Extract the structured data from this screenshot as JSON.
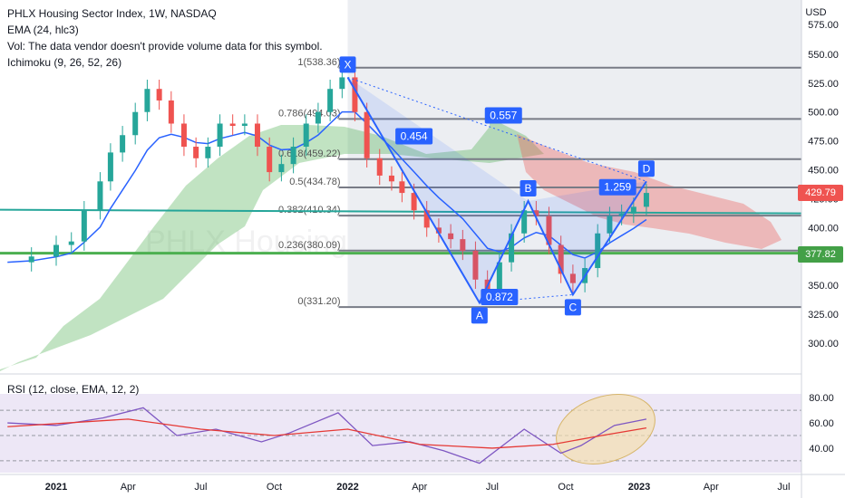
{
  "legend": {
    "title": "PHLX Housing Sector Index, 1W, NASDAQ",
    "ema": "EMA (24, hlc3)",
    "vol": "Vol: The data vendor doesn't provide volume data for this symbol.",
    "ichimoku": "Ichimoku (9, 26, 52, 26)",
    "rsi": "RSI (12, close, EMA, 12, 2)"
  },
  "currency": "USD",
  "watermark": "PHLX Housing",
  "colors": {
    "up": "#26a69a",
    "down": "#ef5350",
    "ema": "#2962ff",
    "pattern": "#2962ff",
    "fib": "#787b86",
    "support": "#4caf50",
    "cloud_bull": "#4caf50",
    "cloud_bear": "#ef5350",
    "rsi_line": "#7e57c2",
    "rsi_ma": "#e53935",
    "rsi_bg": "#ede7f6",
    "highlight": "#f3deb0",
    "price_tag": "#ef5350",
    "support_tag": "#43a047"
  },
  "chart_data": [
    {
      "type": "candlestick",
      "title": "PHLX Housing Sector Index, 1W, NASDAQ",
      "x_ticks": [
        "2021",
        "Apr",
        "Jul",
        "Oct",
        "2022",
        "Apr",
        "Jul",
        "Oct",
        "2023",
        "Apr",
        "Jul"
      ],
      "y_ticks": [
        300,
        325,
        350,
        375,
        400,
        425,
        450,
        475,
        500,
        525,
        550
      ],
      "y_top_label": "575.00",
      "ylim": [
        290,
        585
      ],
      "last_price": "429.79",
      "support_price": "377.82",
      "fib_levels": [
        {
          "ratio": "1",
          "price": 538.36
        },
        {
          "ratio": "0.786",
          "price": 494.03
        },
        {
          "ratio": "0.618",
          "price": 459.22
        },
        {
          "ratio": "0.5",
          "price": 434.78
        },
        {
          "ratio": "0.382",
          "price": 410.34
        },
        {
          "ratio": "0.236",
          "price": 380.09
        },
        {
          "ratio": "0",
          "price": 331.2
        }
      ],
      "harmonic_points": [
        {
          "label": "X",
          "date": "2022-01-01",
          "price": 530
        },
        {
          "label": "A",
          "date": "2022-06-15",
          "price": 335
        },
        {
          "label": "B",
          "date": "2022-08-15",
          "price": 423
        },
        {
          "label": "C",
          "date": "2022-10-10",
          "price": 342
        },
        {
          "label": "D",
          "date": "2023-01-10",
          "price": 440
        }
      ],
      "harmonic_ratios": [
        {
          "label": "0.454",
          "date": "2022-03-25",
          "price": 479
        },
        {
          "label": "0.557",
          "date": "2022-07-15",
          "price": 497
        },
        {
          "label": "1.259",
          "date": "2022-12-05",
          "price": 435
        },
        {
          "label": "0.872",
          "date": "2022-07-10",
          "price": 340
        }
      ],
      "weekly_closes": [
        {
          "date": "2020-11-01",
          "close": 370
        },
        {
          "date": "2020-12-01",
          "close": 375
        },
        {
          "date": "2021-01-01",
          "close": 385
        },
        {
          "date": "2021-01-20",
          "close": 388
        },
        {
          "date": "2021-02-05",
          "close": 415
        },
        {
          "date": "2021-02-25",
          "close": 440
        },
        {
          "date": "2021-03-10",
          "close": 465
        },
        {
          "date": "2021-03-25",
          "close": 480
        },
        {
          "date": "2021-04-10",
          "close": 500
        },
        {
          "date": "2021-04-25",
          "close": 520
        },
        {
          "date": "2021-05-10",
          "close": 510
        },
        {
          "date": "2021-05-25",
          "close": 490
        },
        {
          "date": "2021-06-10",
          "close": 470
        },
        {
          "date": "2021-06-25",
          "close": 460
        },
        {
          "date": "2021-07-10",
          "close": 470
        },
        {
          "date": "2021-07-25",
          "close": 490
        },
        {
          "date": "2021-08-10",
          "close": 488
        },
        {
          "date": "2021-08-25",
          "close": 490
        },
        {
          "date": "2021-09-10",
          "close": 470
        },
        {
          "date": "2021-09-25",
          "close": 448
        },
        {
          "date": "2021-10-10",
          "close": 455
        },
        {
          "date": "2021-10-25",
          "close": 470
        },
        {
          "date": "2021-11-10",
          "close": 490
        },
        {
          "date": "2021-11-25",
          "close": 500
        },
        {
          "date": "2021-12-10",
          "close": 520
        },
        {
          "date": "2021-12-25",
          "close": 530
        },
        {
          "date": "2022-01-10",
          "close": 500
        },
        {
          "date": "2022-01-25",
          "close": 460
        },
        {
          "date": "2022-02-10",
          "close": 445
        },
        {
          "date": "2022-02-25",
          "close": 440
        },
        {
          "date": "2022-03-10",
          "close": 430
        },
        {
          "date": "2022-03-25",
          "close": 415
        },
        {
          "date": "2022-04-10",
          "close": 400
        },
        {
          "date": "2022-04-25",
          "close": 395
        },
        {
          "date": "2022-05-10",
          "close": 390
        },
        {
          "date": "2022-05-25",
          "close": 380
        },
        {
          "date": "2022-06-10",
          "close": 355
        },
        {
          "date": "2022-06-25",
          "close": 345
        },
        {
          "date": "2022-07-10",
          "close": 370
        },
        {
          "date": "2022-07-25",
          "close": 395
        },
        {
          "date": "2022-08-10",
          "close": 415
        },
        {
          "date": "2022-08-25",
          "close": 410
        },
        {
          "date": "2022-09-10",
          "close": 385
        },
        {
          "date": "2022-09-25",
          "close": 360
        },
        {
          "date": "2022-10-10",
          "close": 352
        },
        {
          "date": "2022-10-25",
          "close": 365
        },
        {
          "date": "2022-11-10",
          "close": 395
        },
        {
          "date": "2022-11-25",
          "close": 410
        },
        {
          "date": "2022-12-10",
          "close": 412
        },
        {
          "date": "2022-12-25",
          "close": 418
        },
        {
          "date": "2023-01-10",
          "close": 430
        }
      ]
    },
    {
      "type": "line",
      "title": "RSI (12, close, EMA, 12, 2)",
      "y_ticks": [
        40,
        60,
        80
      ],
      "ylim": [
        22,
        83
      ],
      "band": [
        30,
        70
      ],
      "series": [
        {
          "values_by_date": [
            {
              "date": "2020-11-01",
              "value": 60
            },
            {
              "date": "2021-01-01",
              "value": 58
            },
            {
              "date": "2021-03-01",
              "value": 64
            },
            {
              "date": "2021-04-20",
              "value": 72
            },
            {
              "date": "2021-06-01",
              "value": 50
            },
            {
              "date": "2021-07-20",
              "value": 55
            },
            {
              "date": "2021-09-15",
              "value": 45
            },
            {
              "date": "2021-10-20",
              "value": 52
            },
            {
              "date": "2021-12-20",
              "value": 68
            },
            {
              "date": "2022-02-01",
              "value": 42
            },
            {
              "date": "2022-03-20",
              "value": 45
            },
            {
              "date": "2022-05-01",
              "value": 38
            },
            {
              "date": "2022-06-15",
              "value": 28
            },
            {
              "date": "2022-08-10",
              "value": 55
            },
            {
              "date": "2022-09-25",
              "value": 36
            },
            {
              "date": "2022-10-20",
              "value": 42
            },
            {
              "date": "2022-12-01",
              "value": 58
            },
            {
              "date": "2023-01-10",
              "value": 63
            }
          ]
        },
        {
          "values_by_date": [
            {
              "date": "2020-11-01",
              "value": 57
            },
            {
              "date": "2021-04-01",
              "value": 63
            },
            {
              "date": "2021-07-01",
              "value": 55
            },
            {
              "date": "2021-10-01",
              "value": 50
            },
            {
              "date": "2022-01-01",
              "value": 55
            },
            {
              "date": "2022-04-01",
              "value": 43
            },
            {
              "date": "2022-07-01",
              "value": 40
            },
            {
              "date": "2022-09-15",
              "value": 43
            },
            {
              "date": "2022-11-15",
              "value": 50
            },
            {
              "date": "2023-01-10",
              "value": 56
            }
          ]
        }
      ]
    }
  ]
}
